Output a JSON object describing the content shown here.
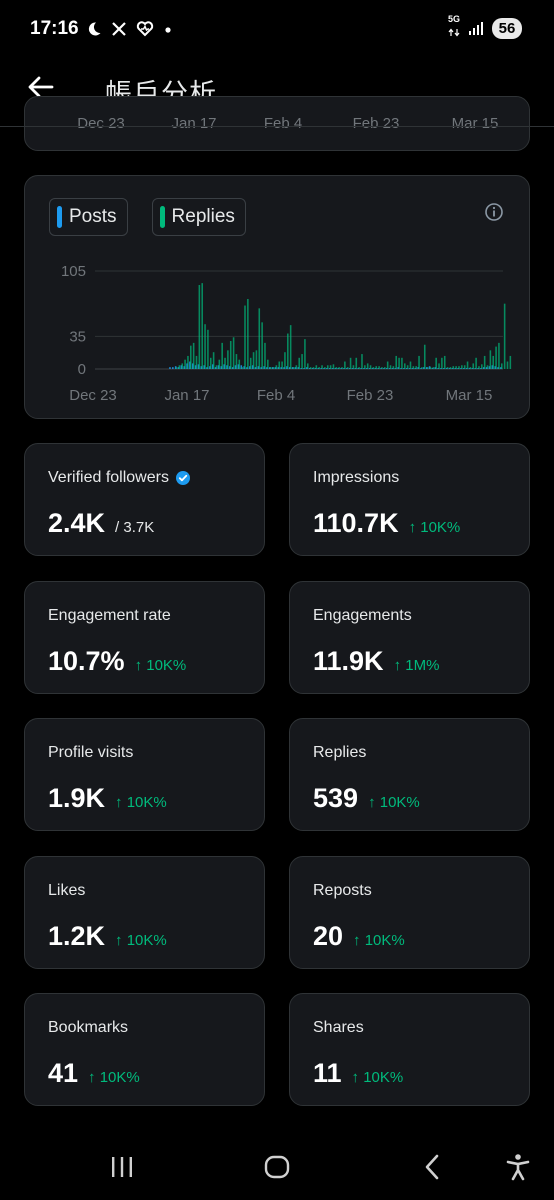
{
  "status_bar": {
    "time": "17:16",
    "left_icons": [
      "moon-icon",
      "x-logo-icon",
      "heart-monitor-icon",
      "dot-icon"
    ],
    "network": "5G",
    "battery": "56"
  },
  "header": {
    "title": "帳戶分析",
    "back_icon": "back-arrow-icon"
  },
  "top_chart_axis": [
    "Dec 23",
    "Jan 17",
    "Feb 4",
    "Feb 23",
    "Mar 15"
  ],
  "legend": {
    "posts": {
      "label": "Posts",
      "color": "#1d9bf0"
    },
    "replies": {
      "label": "Replies",
      "color": "#00ba7c"
    }
  },
  "chart_data": {
    "type": "bar",
    "y_ticks": [
      "105",
      "35",
      "0"
    ],
    "ylim": [
      0,
      105
    ],
    "x_ticks": [
      "Dec 23",
      "Jan 17",
      "Feb 4",
      "Feb 23",
      "Mar 15"
    ],
    "series": [
      {
        "name": "Posts",
        "color": "#1d9bf0",
        "values": [
          0,
          0,
          0,
          0,
          0,
          0,
          0,
          0,
          0,
          0,
          0,
          0,
          0,
          0,
          0,
          0,
          0,
          0,
          0,
          0,
          0,
          0,
          0,
          0,
          0,
          0,
          2,
          2,
          3,
          2,
          4,
          3,
          6,
          8,
          6,
          4,
          5,
          3,
          4,
          2,
          3,
          5,
          2,
          4,
          3,
          5,
          4,
          3,
          2,
          4,
          5,
          4,
          3,
          2,
          3,
          4,
          2,
          3,
          2,
          3,
          2,
          2,
          2,
          2,
          2,
          2,
          2,
          3,
          2,
          2,
          2,
          2,
          1,
          1,
          2,
          1,
          1,
          1,
          1,
          1,
          1,
          1,
          1,
          1,
          1,
          1,
          1,
          1,
          1,
          1,
          1,
          1,
          1,
          1,
          1,
          1,
          1,
          1,
          1,
          1,
          1,
          1,
          1,
          1,
          1,
          1,
          2,
          1,
          1,
          1,
          1,
          1,
          1,
          2,
          1,
          2,
          2,
          3,
          1,
          2,
          1,
          1,
          1,
          1,
          1,
          1,
          1,
          1,
          1,
          1,
          1,
          1,
          1,
          1,
          1,
          1,
          2,
          2,
          3,
          4,
          3,
          2,
          2
        ]
      },
      {
        "name": "Replies",
        "color": "#00ba7c",
        "values": [
          0,
          0,
          0,
          0,
          0,
          0,
          0,
          0,
          0,
          0,
          0,
          0,
          0,
          0,
          0,
          0,
          0,
          0,
          0,
          0,
          0,
          0,
          0,
          0,
          0,
          0,
          0,
          0,
          2,
          4,
          6,
          10,
          14,
          25,
          28,
          14,
          90,
          92,
          48,
          42,
          12,
          18,
          4,
          10,
          28,
          12,
          20,
          30,
          34,
          16,
          10,
          2,
          68,
          75,
          12,
          18,
          20,
          65,
          50,
          28,
          10,
          2,
          2,
          4,
          8,
          8,
          18,
          38,
          47,
          2,
          4,
          12,
          16,
          32,
          6,
          2,
          2,
          4,
          2,
          4,
          2,
          4,
          4,
          5,
          2,
          2,
          2,
          8,
          2,
          12,
          4,
          12,
          2,
          16,
          4,
          6,
          4,
          2,
          3,
          3,
          2,
          2,
          8,
          4,
          3,
          14,
          12,
          12,
          6,
          4,
          8,
          3,
          3,
          14,
          2,
          26,
          2,
          2,
          2,
          12,
          6,
          12,
          14,
          2,
          2,
          3,
          3,
          3,
          4,
          4,
          8,
          2,
          6,
          12,
          3,
          5,
          14,
          4,
          20,
          14,
          24,
          28,
          6,
          70,
          8,
          14
        ]
      }
    ]
  },
  "metrics": [
    {
      "label": "Verified followers",
      "value": "2.4K",
      "sub": "/ 3.7K",
      "change": "",
      "verified": true
    },
    {
      "label": "Impressions",
      "value": "110.7K",
      "sub": "",
      "change": "↑ 10K%"
    },
    {
      "label": "Engagement rate",
      "value": "10.7%",
      "sub": "",
      "change": "↑ 10K%"
    },
    {
      "label": "Engagements",
      "value": "11.9K",
      "sub": "",
      "change": "↑ 1M%"
    },
    {
      "label": "Profile visits",
      "value": "1.9K",
      "sub": "",
      "change": "↑ 10K%"
    },
    {
      "label": "Replies",
      "value": "539",
      "sub": "",
      "change": "↑ 10K%"
    },
    {
      "label": "Likes",
      "value": "1.2K",
      "sub": "",
      "change": "↑ 10K%"
    },
    {
      "label": "Reposts",
      "value": "20",
      "sub": "",
      "change": "↑ 10K%"
    },
    {
      "label": "Bookmarks",
      "value": "41",
      "sub": "",
      "change": "↑ 10K%"
    },
    {
      "label": "Shares",
      "value": "11",
      "sub": "",
      "change": "↑ 10K%"
    }
  ],
  "nav": [
    "recents-icon",
    "home-icon",
    "back-icon",
    "accessibility-icon"
  ]
}
